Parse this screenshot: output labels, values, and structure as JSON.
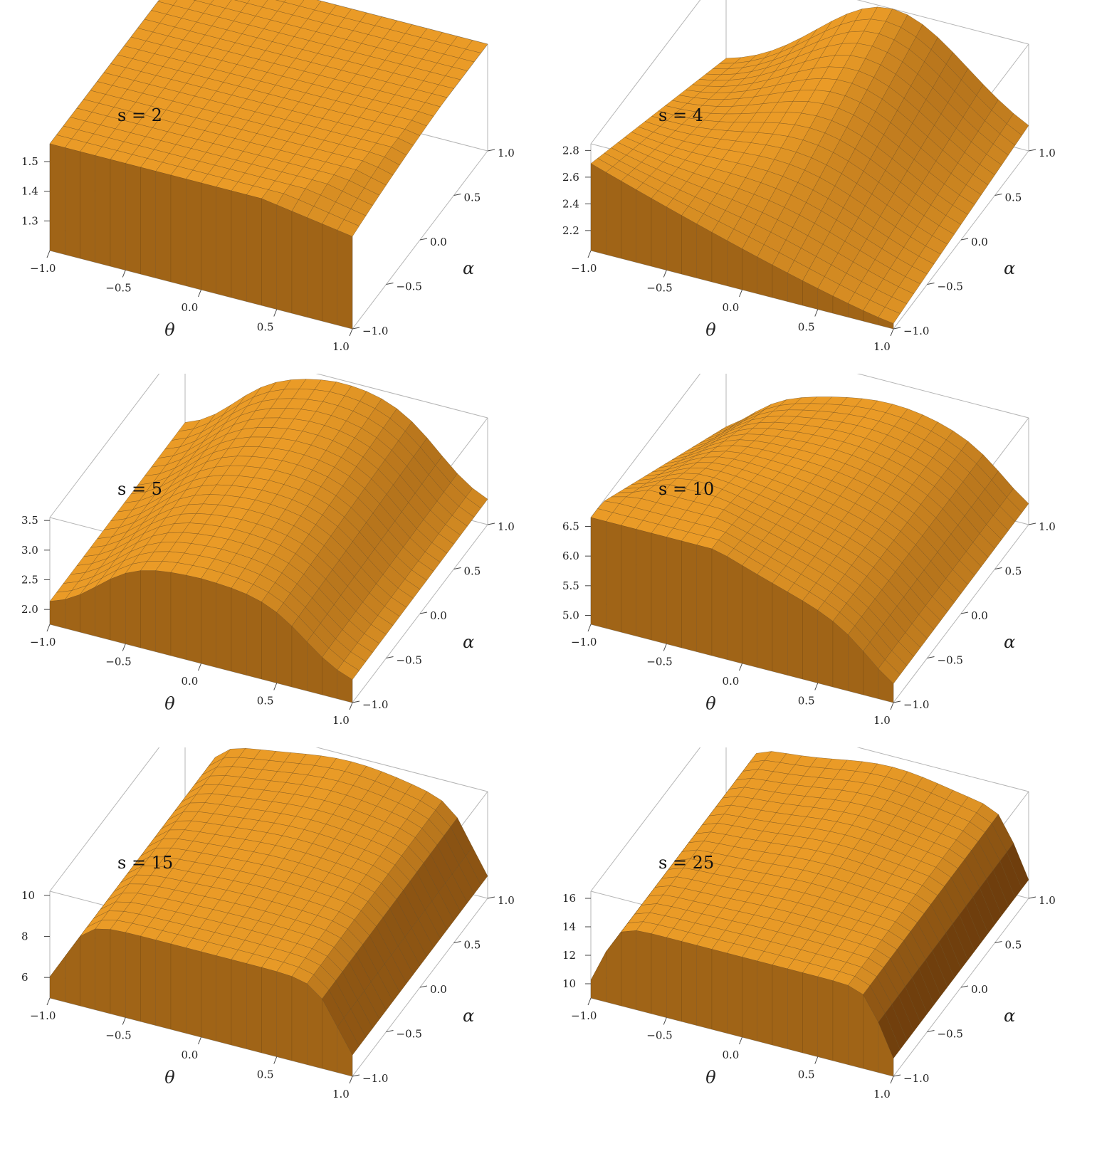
{
  "chart_data": [
    {
      "type": "surface3d",
      "panel_label": "s = 2",
      "s": 2,
      "xlabel": "θ",
      "ylabel": "α",
      "x_ticks": [
        "−1.0",
        "−0.5",
        "0.0",
        "0.5",
        "1.0"
      ],
      "y_ticks": [
        "−1.0",
        "−0.5",
        "0.0",
        "0.5",
        "1.0"
      ],
      "z_ticks": [
        "1.3",
        "1.4",
        "1.5"
      ],
      "xlim": [
        -1,
        1
      ],
      "ylim": [
        -1,
        1
      ],
      "zlim": [
        1.2,
        1.56
      ],
      "surface_color": "#f6a52a",
      "shadow_color": "#5a2e08"
    },
    {
      "type": "surface3d",
      "panel_label": "s = 4",
      "s": 4,
      "xlabel": "θ",
      "ylabel": "α",
      "x_ticks": [
        "−1.0",
        "−0.5",
        "0.0",
        "0.5",
        "1.0"
      ],
      "y_ticks": [
        "−1.0",
        "−0.5",
        "0.0",
        "0.5",
        "1.0"
      ],
      "z_ticks": [
        "2.2",
        "2.4",
        "2.6",
        "2.8"
      ],
      "xlim": [
        -1,
        1
      ],
      "ylim": [
        -1,
        1
      ],
      "zlim": [
        2.05,
        2.85
      ],
      "surface_color": "#f6a52a",
      "shadow_color": "#5a2e08"
    },
    {
      "type": "surface3d",
      "panel_label": "s = 5",
      "s": 5,
      "xlabel": "θ",
      "ylabel": "α",
      "x_ticks": [
        "−1.0",
        "−0.5",
        "0.0",
        "0.5",
        "1.0"
      ],
      "y_ticks": [
        "−1.0",
        "−0.5",
        "0.0",
        "0.5",
        "1.0"
      ],
      "z_ticks": [
        "2.0",
        "2.5",
        "3.0",
        "3.5"
      ],
      "xlim": [
        -1,
        1
      ],
      "ylim": [
        -1,
        1
      ],
      "zlim": [
        1.75,
        3.55
      ],
      "surface_color": "#f6a52a",
      "shadow_color": "#5a2e08"
    },
    {
      "type": "surface3d",
      "panel_label": "s = 10",
      "s": 10,
      "xlabel": "θ",
      "ylabel": "α",
      "x_ticks": [
        "−1.0",
        "−0.5",
        "0.0",
        "0.5",
        "1.0"
      ],
      "y_ticks": [
        "−1.0",
        "−0.5",
        "0.0",
        "0.5",
        "1.0"
      ],
      "z_ticks": [
        "5.0",
        "5.5",
        "6.0",
        "6.5"
      ],
      "xlim": [
        -1,
        1
      ],
      "ylim": [
        -1,
        1
      ],
      "zlim": [
        4.85,
        6.65
      ],
      "surface_color": "#f6a52a",
      "shadow_color": "#5a2e08"
    },
    {
      "type": "surface3d",
      "panel_label": "s = 15",
      "s": 15,
      "xlabel": "θ",
      "ylabel": "α",
      "x_ticks": [
        "−1.0",
        "−0.5",
        "0.0",
        "0.5",
        "1.0"
      ],
      "y_ticks": [
        "−1.0",
        "−0.5",
        "0.0",
        "0.5",
        "1.0"
      ],
      "z_ticks": [
        "6",
        "8",
        "10"
      ],
      "xlim": [
        -1,
        1
      ],
      "ylim": [
        -1,
        1
      ],
      "zlim": [
        5,
        10.2
      ],
      "surface_color": "#f6a52a",
      "shadow_color": "#5a2e08"
    },
    {
      "type": "surface3d",
      "panel_label": "s = 25",
      "s": 25,
      "xlabel": "θ",
      "ylabel": "α",
      "x_ticks": [
        "−1.0",
        "−0.5",
        "0.0",
        "0.5",
        "1.0"
      ],
      "y_ticks": [
        "−1.0",
        "−0.5",
        "0.0",
        "0.5",
        "1.0"
      ],
      "z_ticks": [
        "10",
        "12",
        "14",
        "16"
      ],
      "xlim": [
        -1,
        1
      ],
      "ylim": [
        -1,
        1
      ],
      "zlim": [
        9,
        16.5
      ],
      "surface_color": "#f6a52a",
      "shadow_color": "#5a2e08"
    }
  ]
}
